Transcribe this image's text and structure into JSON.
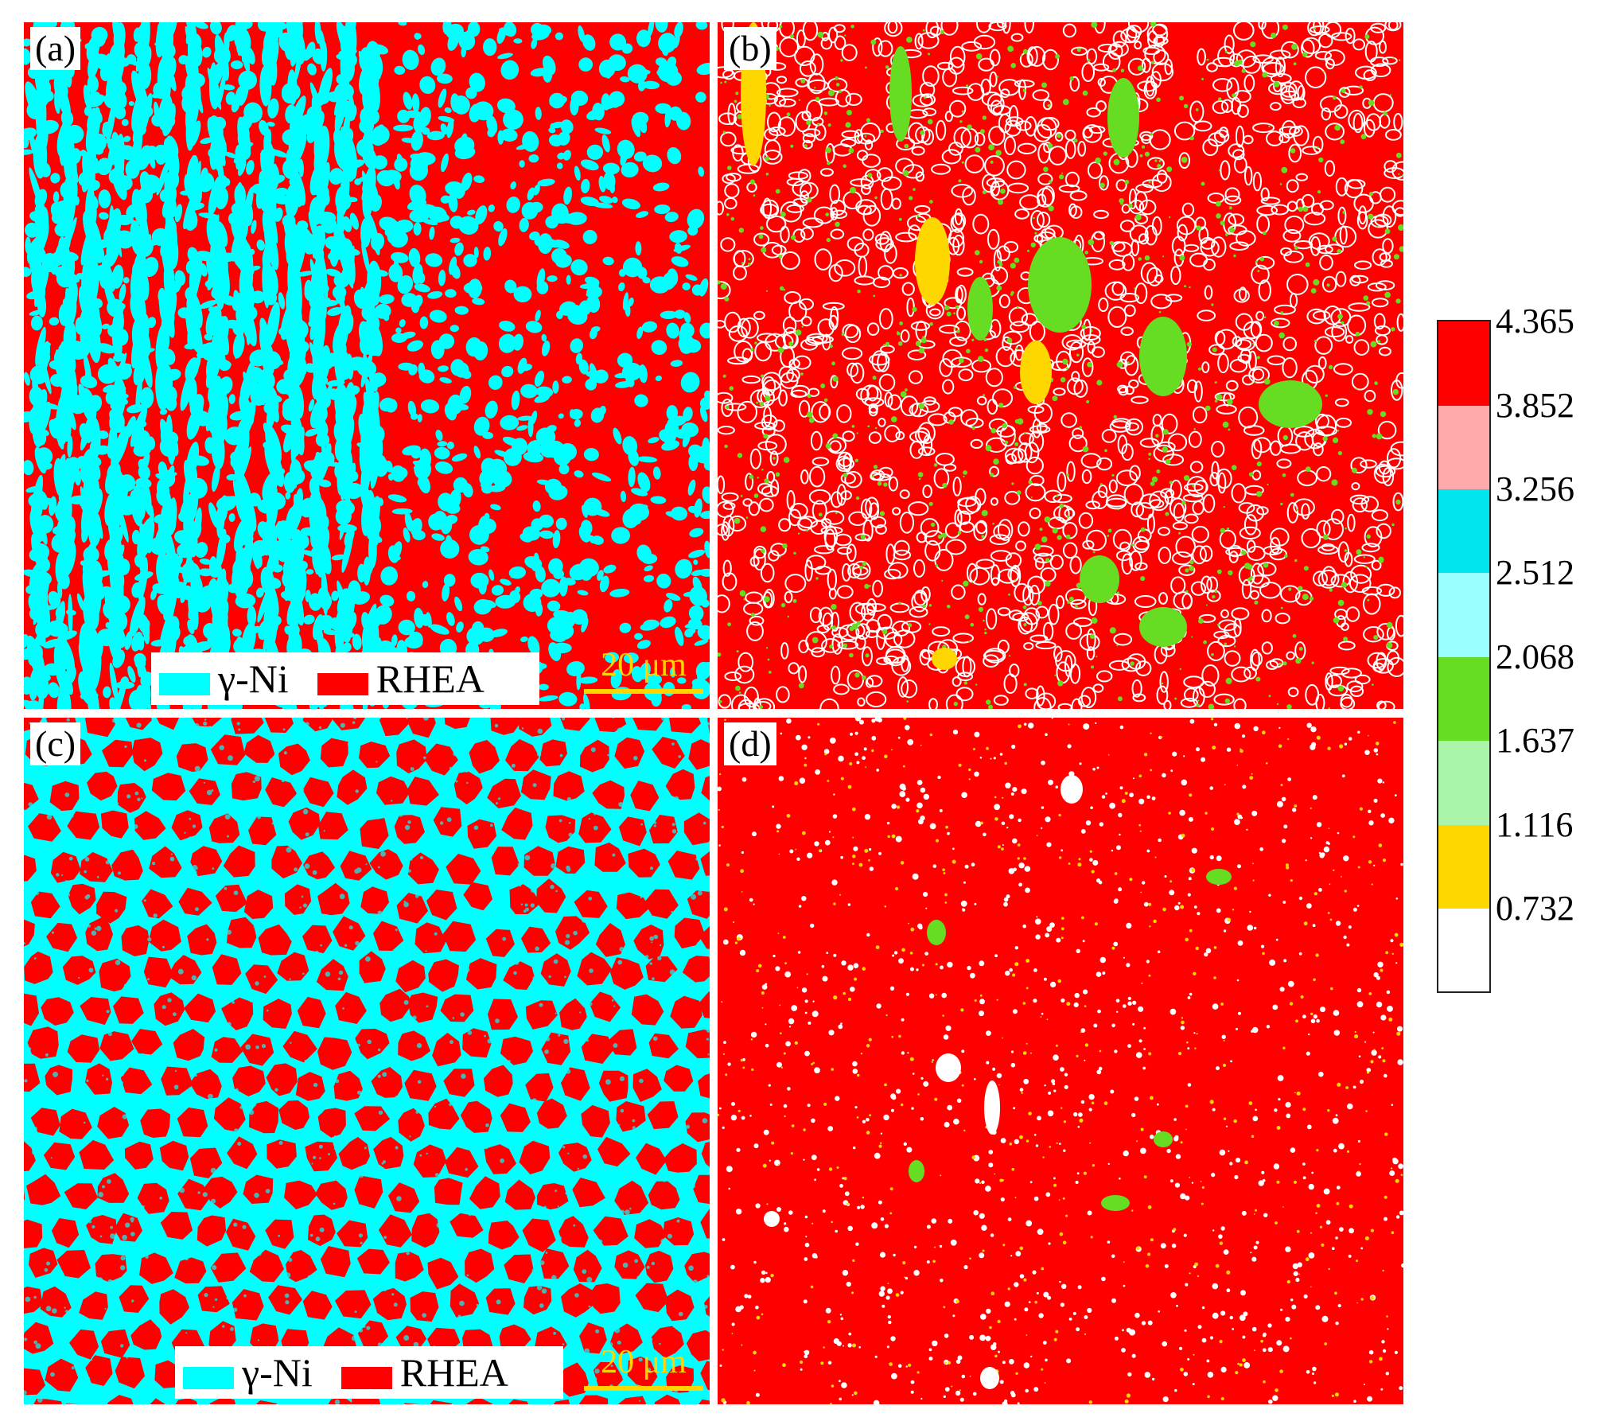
{
  "palette": {
    "red": "#ff0000",
    "cyan": "#00ffff",
    "pink": "#ffaaaa",
    "light_cyan": "#99ffff",
    "green": "#66dd22",
    "light_green": "#aaf5aa",
    "yellow": "#ffd700",
    "white": "#ffffff",
    "scalebar": "#ffd500"
  },
  "panels": [
    {
      "id": "a",
      "label": "(a)",
      "type": "phase-map",
      "pattern": "dendrite"
    },
    {
      "id": "b",
      "label": "(b)",
      "type": "kam-map",
      "pattern": "dendrite-kam"
    },
    {
      "id": "c",
      "label": "(c)",
      "type": "phase-map",
      "pattern": "cellular"
    },
    {
      "id": "d",
      "label": "(d)",
      "type": "kam-map",
      "pattern": "fine-kam"
    }
  ],
  "legend_a": {
    "items": [
      {
        "label": "γ-Ni",
        "color": "#00ffff"
      },
      {
        "label": "RHEA",
        "color": "#ff0000"
      }
    ]
  },
  "legend_c": {
    "items": [
      {
        "label": "γ-Ni",
        "color": "#00ffff"
      },
      {
        "label": "RHEA",
        "color": "#ff0000"
      }
    ]
  },
  "scalebar_a": {
    "label": "20 μm"
  },
  "scalebar_c": {
    "label": "20 μm"
  },
  "colorbar": {
    "ticks": [
      "4.365",
      "3.852",
      "3.256",
      "2.512",
      "2.068",
      "1.637",
      "1.116",
      "0.732"
    ],
    "bands_top_to_bottom": [
      "#ff0000",
      "#ffaaaa",
      "#00e5ee",
      "#99ffff",
      "#66dd22",
      "#aaf5aa",
      "#ffd700",
      "#ffffff"
    ]
  }
}
